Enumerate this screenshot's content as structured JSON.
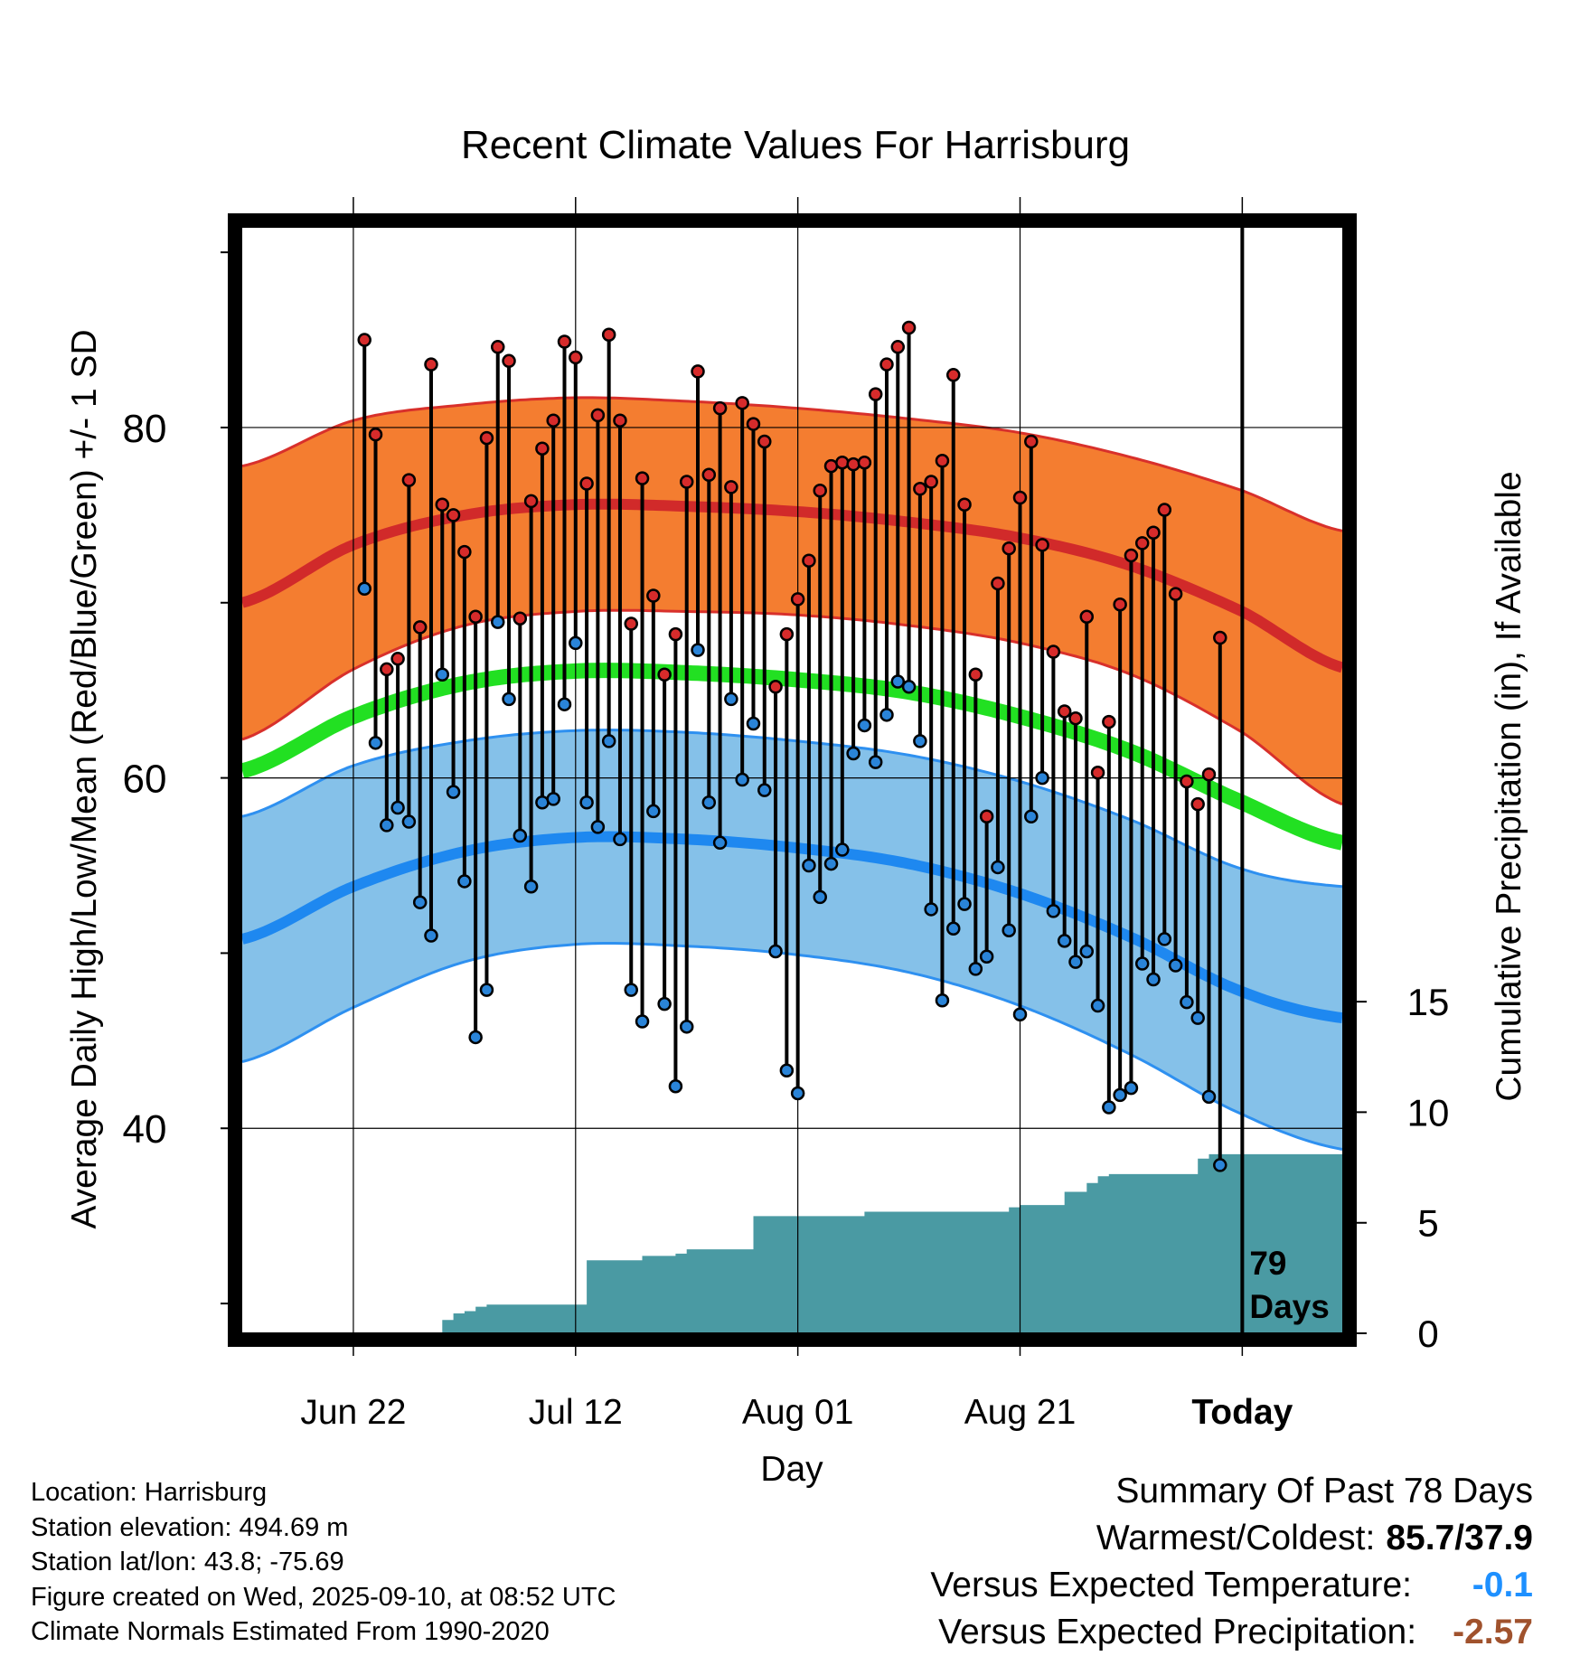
{
  "chart_data": {
    "type": "line",
    "title": "Recent Climate Values For Harrisburg",
    "xlabel": "Day",
    "ylabel": "Average Daily High/Low/Mean (Red/Blue/Green) +/- 1 SD",
    "y2label": "Cumulative Precipitation (in), If Available",
    "x_tick_labels": [
      "Jun 22",
      "Jul 12",
      "Aug 01",
      "Aug 21",
      "Today"
    ],
    "x_tick_days": [
      -79,
      -59,
      -39,
      -19,
      1
    ],
    "xlim": [
      -89,
      10
    ],
    "ylim": [
      28.3,
      91.4
    ],
    "y_ticks": [
      40,
      60,
      80
    ],
    "y2lim": [
      0,
      50
    ],
    "y2_ticks": [
      0,
      5,
      10,
      15
    ],
    "today_annotation": [
      "79",
      "Days"
    ],
    "normals_days": [
      -89,
      -79,
      -69,
      -59,
      -49,
      -39,
      -29,
      -19,
      -9,
      1,
      10
    ],
    "normal_high": [
      70.0,
      73.3,
      75.0,
      75.6,
      75.5,
      75.2,
      74.6,
      73.7,
      72.1,
      69.5,
      66.3
    ],
    "normal_high_sd": [
      7.8,
      7.1,
      6.3,
      6.1,
      6.0,
      5.9,
      5.9,
      6.0,
      6.2,
      6.9,
      7.8
    ],
    "normal_low": [
      50.8,
      53.8,
      55.8,
      56.6,
      56.5,
      56.0,
      55.1,
      53.4,
      50.9,
      47.8,
      46.3
    ],
    "normal_low_sd": [
      7.0,
      6.9,
      6.3,
      6.1,
      6.1,
      6.1,
      6.2,
      6.4,
      6.7,
      7.0,
      7.5
    ],
    "normal_mean": [
      60.4,
      63.5,
      65.4,
      66.1,
      66.0,
      65.6,
      64.9,
      63.5,
      61.5,
      58.6,
      56.3
    ],
    "daily_high": [
      85.0,
      79.6,
      66.2,
      66.8,
      77.0,
      68.6,
      83.6,
      75.6,
      75.0,
      72.9,
      69.2,
      79.4,
      84.6,
      83.8,
      69.1,
      75.8,
      78.8,
      80.4,
      84.9,
      84.0,
      76.8,
      80.7,
      85.3,
      80.4,
      68.8,
      77.1,
      70.4,
      65.9,
      68.2,
      76.9,
      83.2,
      77.3,
      81.1,
      76.6,
      81.4,
      80.2,
      79.2,
      65.2,
      68.2,
      70.2,
      72.4,
      76.4,
      77.8,
      78.0,
      77.9,
      78.0,
      81.9,
      83.6,
      84.6,
      85.7,
      76.5,
      76.9,
      78.1,
      83.0,
      75.6,
      65.9,
      57.8,
      71.1,
      73.1,
      76.0,
      79.2,
      73.3,
      67.2,
      63.8,
      63.4,
      69.2,
      60.3,
      63.2,
      69.9,
      72.7,
      73.4,
      74.0,
      75.3,
      70.5,
      59.8,
      58.5,
      60.2,
      68.0
    ],
    "daily_low": [
      70.8,
      62.0,
      57.3,
      58.3,
      57.5,
      52.9,
      51.0,
      65.9,
      59.2,
      54.1,
      45.2,
      47.9,
      68.9,
      64.5,
      56.7,
      53.8,
      58.6,
      58.8,
      64.2,
      67.7,
      58.6,
      57.2,
      62.1,
      56.5,
      47.9,
      46.1,
      58.1,
      47.1,
      42.4,
      45.8,
      67.3,
      58.6,
      56.3,
      64.5,
      59.9,
      63.1,
      59.3,
      50.1,
      43.3,
      42.0,
      55.0,
      53.2,
      55.1,
      55.9,
      61.4,
      63.0,
      60.9,
      63.6,
      65.5,
      65.2,
      62.1,
      52.5,
      47.3,
      51.4,
      52.8,
      49.1,
      49.8,
      54.9,
      51.3,
      46.5,
      57.8,
      60.0,
      52.4,
      50.7,
      49.5,
      50.1,
      47.0,
      41.2,
      41.9,
      42.3,
      49.4,
      48.5,
      50.8,
      49.3,
      47.2,
      46.3,
      41.8,
      37.9
    ],
    "precip_cumulative": [
      [
        -89,
        0
      ],
      [
        -81,
        0
      ],
      [
        -72,
        0
      ],
      [
        -71,
        0.6
      ],
      [
        -70,
        0.9
      ],
      [
        -69,
        1.0
      ],
      [
        -68,
        1.2
      ],
      [
        -67,
        1.3
      ],
      [
        -59,
        1.3
      ],
      [
        -58,
        3.3
      ],
      [
        -57,
        3.3
      ],
      [
        -56,
        3.3
      ],
      [
        -55,
        3.3
      ],
      [
        -54,
        3.3
      ],
      [
        -53,
        3.5
      ],
      [
        -52,
        3.5
      ],
      [
        -51,
        3.5
      ],
      [
        -50,
        3.6
      ],
      [
        -49,
        3.8
      ],
      [
        -48,
        3.8
      ],
      [
        -47,
        3.8
      ],
      [
        -46,
        3.8
      ],
      [
        -45,
        3.8
      ],
      [
        -44,
        3.8
      ],
      [
        -43,
        5.3
      ],
      [
        -42,
        5.3
      ],
      [
        -41,
        5.3
      ],
      [
        -40,
        5.3
      ],
      [
        -39,
        5.3
      ],
      [
        -38,
        5.3
      ],
      [
        -37,
        5.3
      ],
      [
        -36,
        5.3
      ],
      [
        -35,
        5.3
      ],
      [
        -34,
        5.3
      ],
      [
        -33,
        5.5
      ],
      [
        -32,
        5.5
      ],
      [
        -31,
        5.5
      ],
      [
        -30,
        5.5
      ],
      [
        -29,
        5.5
      ],
      [
        -28,
        5.5
      ],
      [
        -27,
        5.5
      ],
      [
        -26,
        5.5
      ],
      [
        -25,
        5.5
      ],
      [
        -24,
        5.5
      ],
      [
        -23,
        5.5
      ],
      [
        -22,
        5.5
      ],
      [
        -21,
        5.5
      ],
      [
        -20,
        5.7
      ],
      [
        -19,
        5.8
      ],
      [
        -18,
        5.8
      ],
      [
        -17,
        5.8
      ],
      [
        -16,
        5.8
      ],
      [
        -15,
        6.4
      ],
      [
        -14,
        6.4
      ],
      [
        -13,
        6.8
      ],
      [
        -12,
        7.1
      ],
      [
        -11,
        7.2
      ],
      [
        -10,
        7.2
      ],
      [
        -9,
        7.2
      ],
      [
        -8,
        7.2
      ],
      [
        -7,
        7.2
      ],
      [
        -6,
        7.2
      ],
      [
        -5,
        7.2
      ],
      [
        -4,
        7.2
      ],
      [
        -3,
        7.9
      ],
      [
        -2,
        8.1
      ],
      [
        -1,
        8.1
      ],
      [
        0,
        8.1
      ],
      [
        1,
        8.1
      ],
      [
        10,
        8.1
      ]
    ],
    "colors": {
      "high_band": "#f47d30",
      "high_band_edge": "#d8302b",
      "high_line": "#d12a2a",
      "low_band": "#85c1e9",
      "low_band_edge": "#2e90f0",
      "low_line": "#1e88f0",
      "mean_line": "#22e022",
      "precip": "#4a9aa3",
      "high_dot": "#d62b2b",
      "low_dot": "#2a84d8"
    }
  },
  "info": {
    "location": "Location: Harrisburg",
    "elevation": "Station elevation: 494.69 m",
    "latlon": "Station lat/lon: 43.8; -75.69",
    "created": "Figure created on Wed, 2025-09-10, at 08:52 UTC",
    "normals": "Climate Normals Estimated From 1990-2020"
  },
  "summary": {
    "title": "Summary Of Past 78 Days",
    "warm_cold_label": "Warmest/Coldest:",
    "warm_cold_value": "85.7/37.9",
    "temp_label": "Versus Expected Temperature:",
    "temp_value": "-0.1",
    "temp_color": "#1e90ff",
    "precip_label": "Versus Expected Precipitation:",
    "precip_value": "-2.57",
    "precip_color": "#a0522d"
  }
}
